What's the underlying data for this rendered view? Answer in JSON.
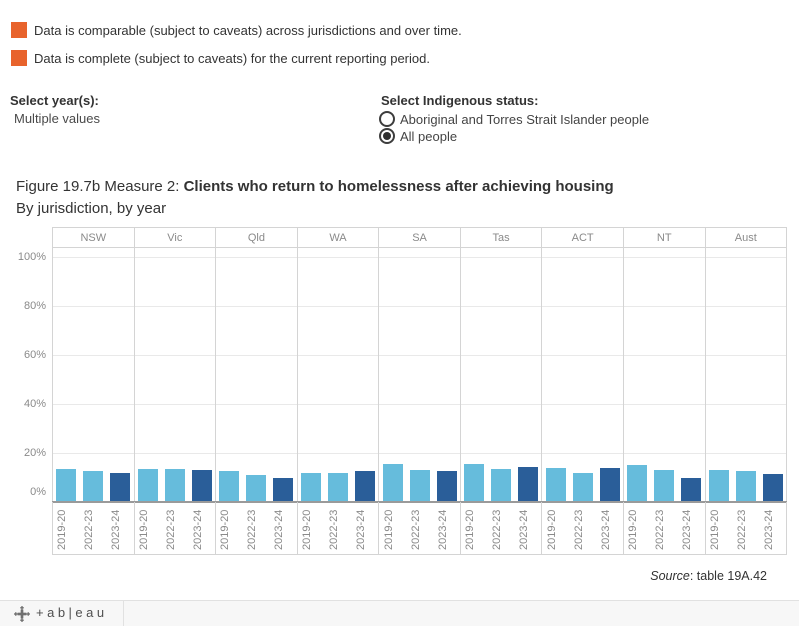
{
  "legend": {
    "items": [
      {
        "color": "#e8632c",
        "label": "Data is comparable (subject to caveats) across jurisdictions and over time."
      },
      {
        "color": "#e8632c",
        "label": "Data is complete (subject to caveats) for the current reporting period."
      }
    ]
  },
  "filters": {
    "year": {
      "label": "Select year(s):",
      "value": "Multiple values"
    },
    "indigenous": {
      "label": "Select Indigenous status:",
      "options": [
        {
          "label": "Aboriginal and Torres Strait Islander people",
          "selected": false
        },
        {
          "label": "All people",
          "selected": true
        }
      ]
    }
  },
  "title": {
    "prefix": "Figure 19.7b Measure 2: ",
    "bold": "Clients who return to homelessness after achieving housing",
    "subtitle": "By jurisdiction, by year"
  },
  "chart_data": {
    "type": "bar",
    "title": "Clients who return to homelessness after achieving housing",
    "categories": [
      "NSW",
      "Vic",
      "Qld",
      "WA",
      "SA",
      "Tas",
      "ACT",
      "NT",
      "Aust"
    ],
    "x_sublabels": [
      "2019-20",
      "2022-23",
      "2023-24"
    ],
    "series": [
      {
        "name": "2019-20",
        "color": "#66bcdc",
        "values": [
          13.5,
          13.5,
          12.5,
          12,
          15.5,
          15.5,
          14,
          15,
          13
        ]
      },
      {
        "name": "2022-23",
        "color": "#66bcdc",
        "values": [
          12.5,
          13.5,
          11,
          12,
          13,
          13.5,
          12,
          13,
          12.5
        ]
      },
      {
        "name": "2023-24",
        "color": "#2a5e99",
        "values": [
          12,
          13,
          10,
          12.5,
          12.5,
          14.5,
          14,
          10,
          11.5
        ]
      }
    ],
    "ylabel": "",
    "xlabel": "",
    "ylim": [
      0,
      100
    ],
    "yticks": [
      0,
      20,
      40,
      60,
      80,
      100
    ],
    "ytick_suffix": "%",
    "grid": true,
    "legend_position": "none"
  },
  "source": {
    "italic": "Source",
    "rest": ": table 19A.42"
  },
  "footer": {
    "brand": "+ab|eau"
  }
}
